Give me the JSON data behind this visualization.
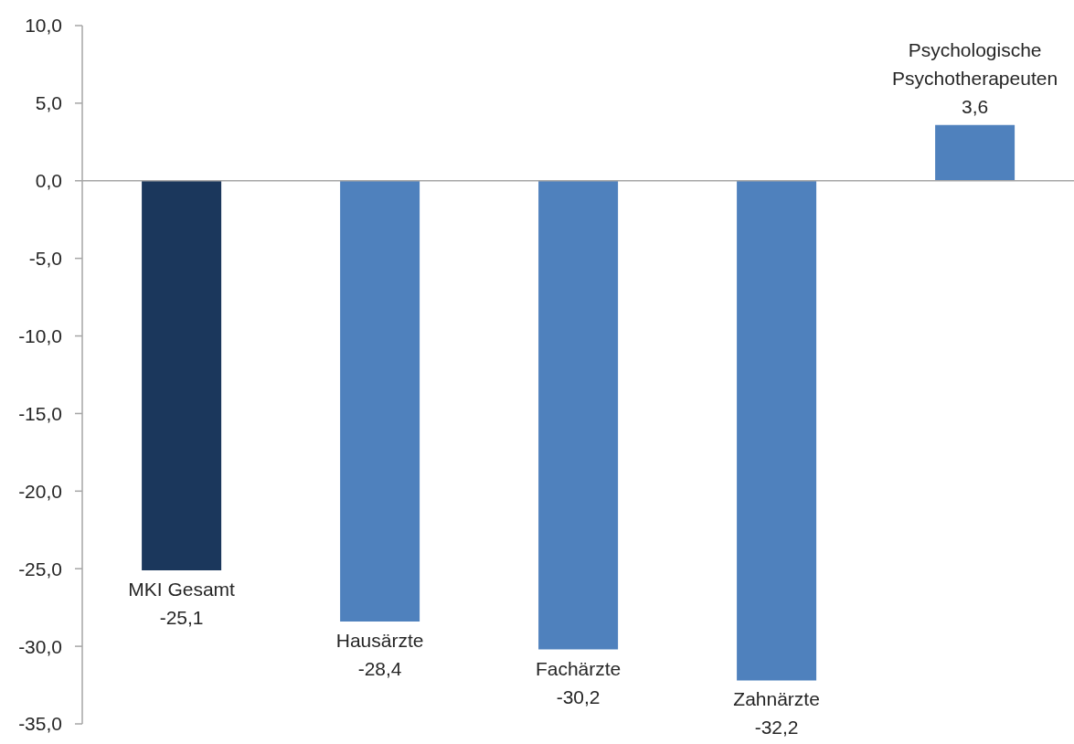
{
  "chart_data": {
    "type": "bar",
    "categories": [
      "MKI Gesamt",
      "Hausärzte",
      "Fachärzte",
      "Zahnärzte",
      "Psychologische Psychotherapeuten"
    ],
    "values": [
      -25.1,
      -28.4,
      -30.2,
      -32.2,
      3.6
    ],
    "colors": [
      "#1b375c",
      "#4f81bd",
      "#4f81bd",
      "#4f81bd",
      "#4f81bd"
    ],
    "value_labels": [
      "-25,1",
      "-28,4",
      "-30,2",
      "-32,2",
      "3,6"
    ],
    "ylim": [
      -35,
      10
    ],
    "yticks": [
      {
        "value": 10,
        "label": "10,0"
      },
      {
        "value": 5,
        "label": "5,0"
      },
      {
        "value": 0,
        "label": "0,0"
      },
      {
        "value": -5,
        "label": "-5,0"
      },
      {
        "value": -10,
        "label": "-10,0"
      },
      {
        "value": -15,
        "label": "-15,0"
      },
      {
        "value": -20,
        "label": "-20,0"
      },
      {
        "value": -25,
        "label": "-25,0"
      },
      {
        "value": -30,
        "label": "-30,0"
      },
      {
        "value": -35,
        "label": "-35,0"
      }
    ],
    "tick_labels": "y"
  }
}
